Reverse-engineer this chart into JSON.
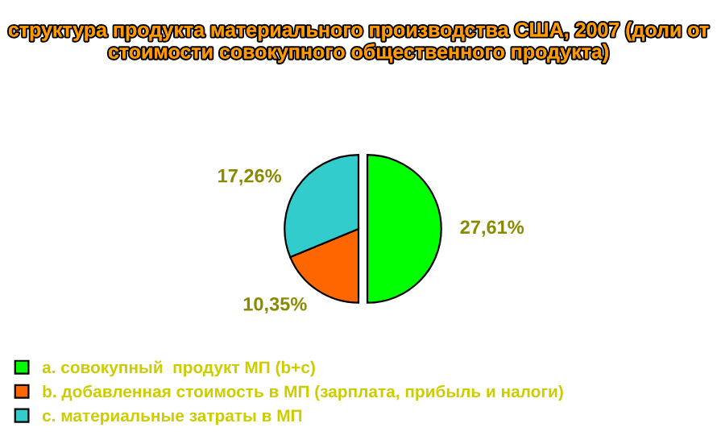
{
  "chart_data": {
    "type": "pie",
    "title": "структура продукта материального производства США, 2007 (доли от стоимости совокупного общественного продукта)",
    "categories": [
      "a. совокупный  продукт МП (b+c)",
      "b. добавленная стоимость в МП (зарплата, прибыль и налоги)",
      "c. материальные затраты в МП"
    ],
    "values": [
      27.61,
      10.35,
      17.26
    ],
    "value_labels": [
      "27,61%",
      "10,35%",
      "17,26%"
    ],
    "colors": [
      "#00ff00",
      "#ff6600",
      "#33cccc"
    ],
    "legend": "bottom left"
  }
}
